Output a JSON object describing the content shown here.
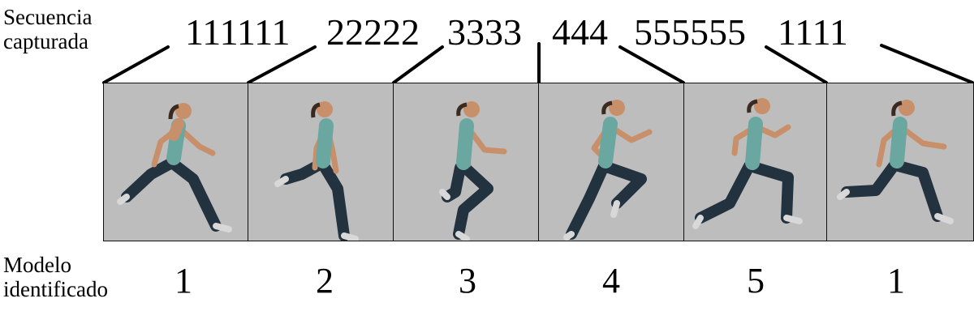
{
  "labels": {
    "captured_sequence": [
      "Secuencia",
      "capturada"
    ],
    "identified_model": [
      "Modelo",
      "identificado"
    ]
  },
  "sequence_groups": [
    "111111",
    "22222",
    "3333",
    "444",
    "555555",
    "1111"
  ],
  "frames": [
    {
      "model": "1",
      "pose": "runner-pose-1"
    },
    {
      "model": "2",
      "pose": "runner-pose-2"
    },
    {
      "model": "3",
      "pose": "runner-pose-3"
    },
    {
      "model": "4",
      "pose": "runner-pose-4"
    },
    {
      "model": "5",
      "pose": "runner-pose-5"
    },
    {
      "model": "1",
      "pose": "runner-pose-1"
    }
  ],
  "colors": {
    "frame_background": "#bdbdbd",
    "skin": "#c8906a",
    "top": "#6aa7a0",
    "leggings": "#23323f",
    "shoe": "#d8d8d8"
  }
}
